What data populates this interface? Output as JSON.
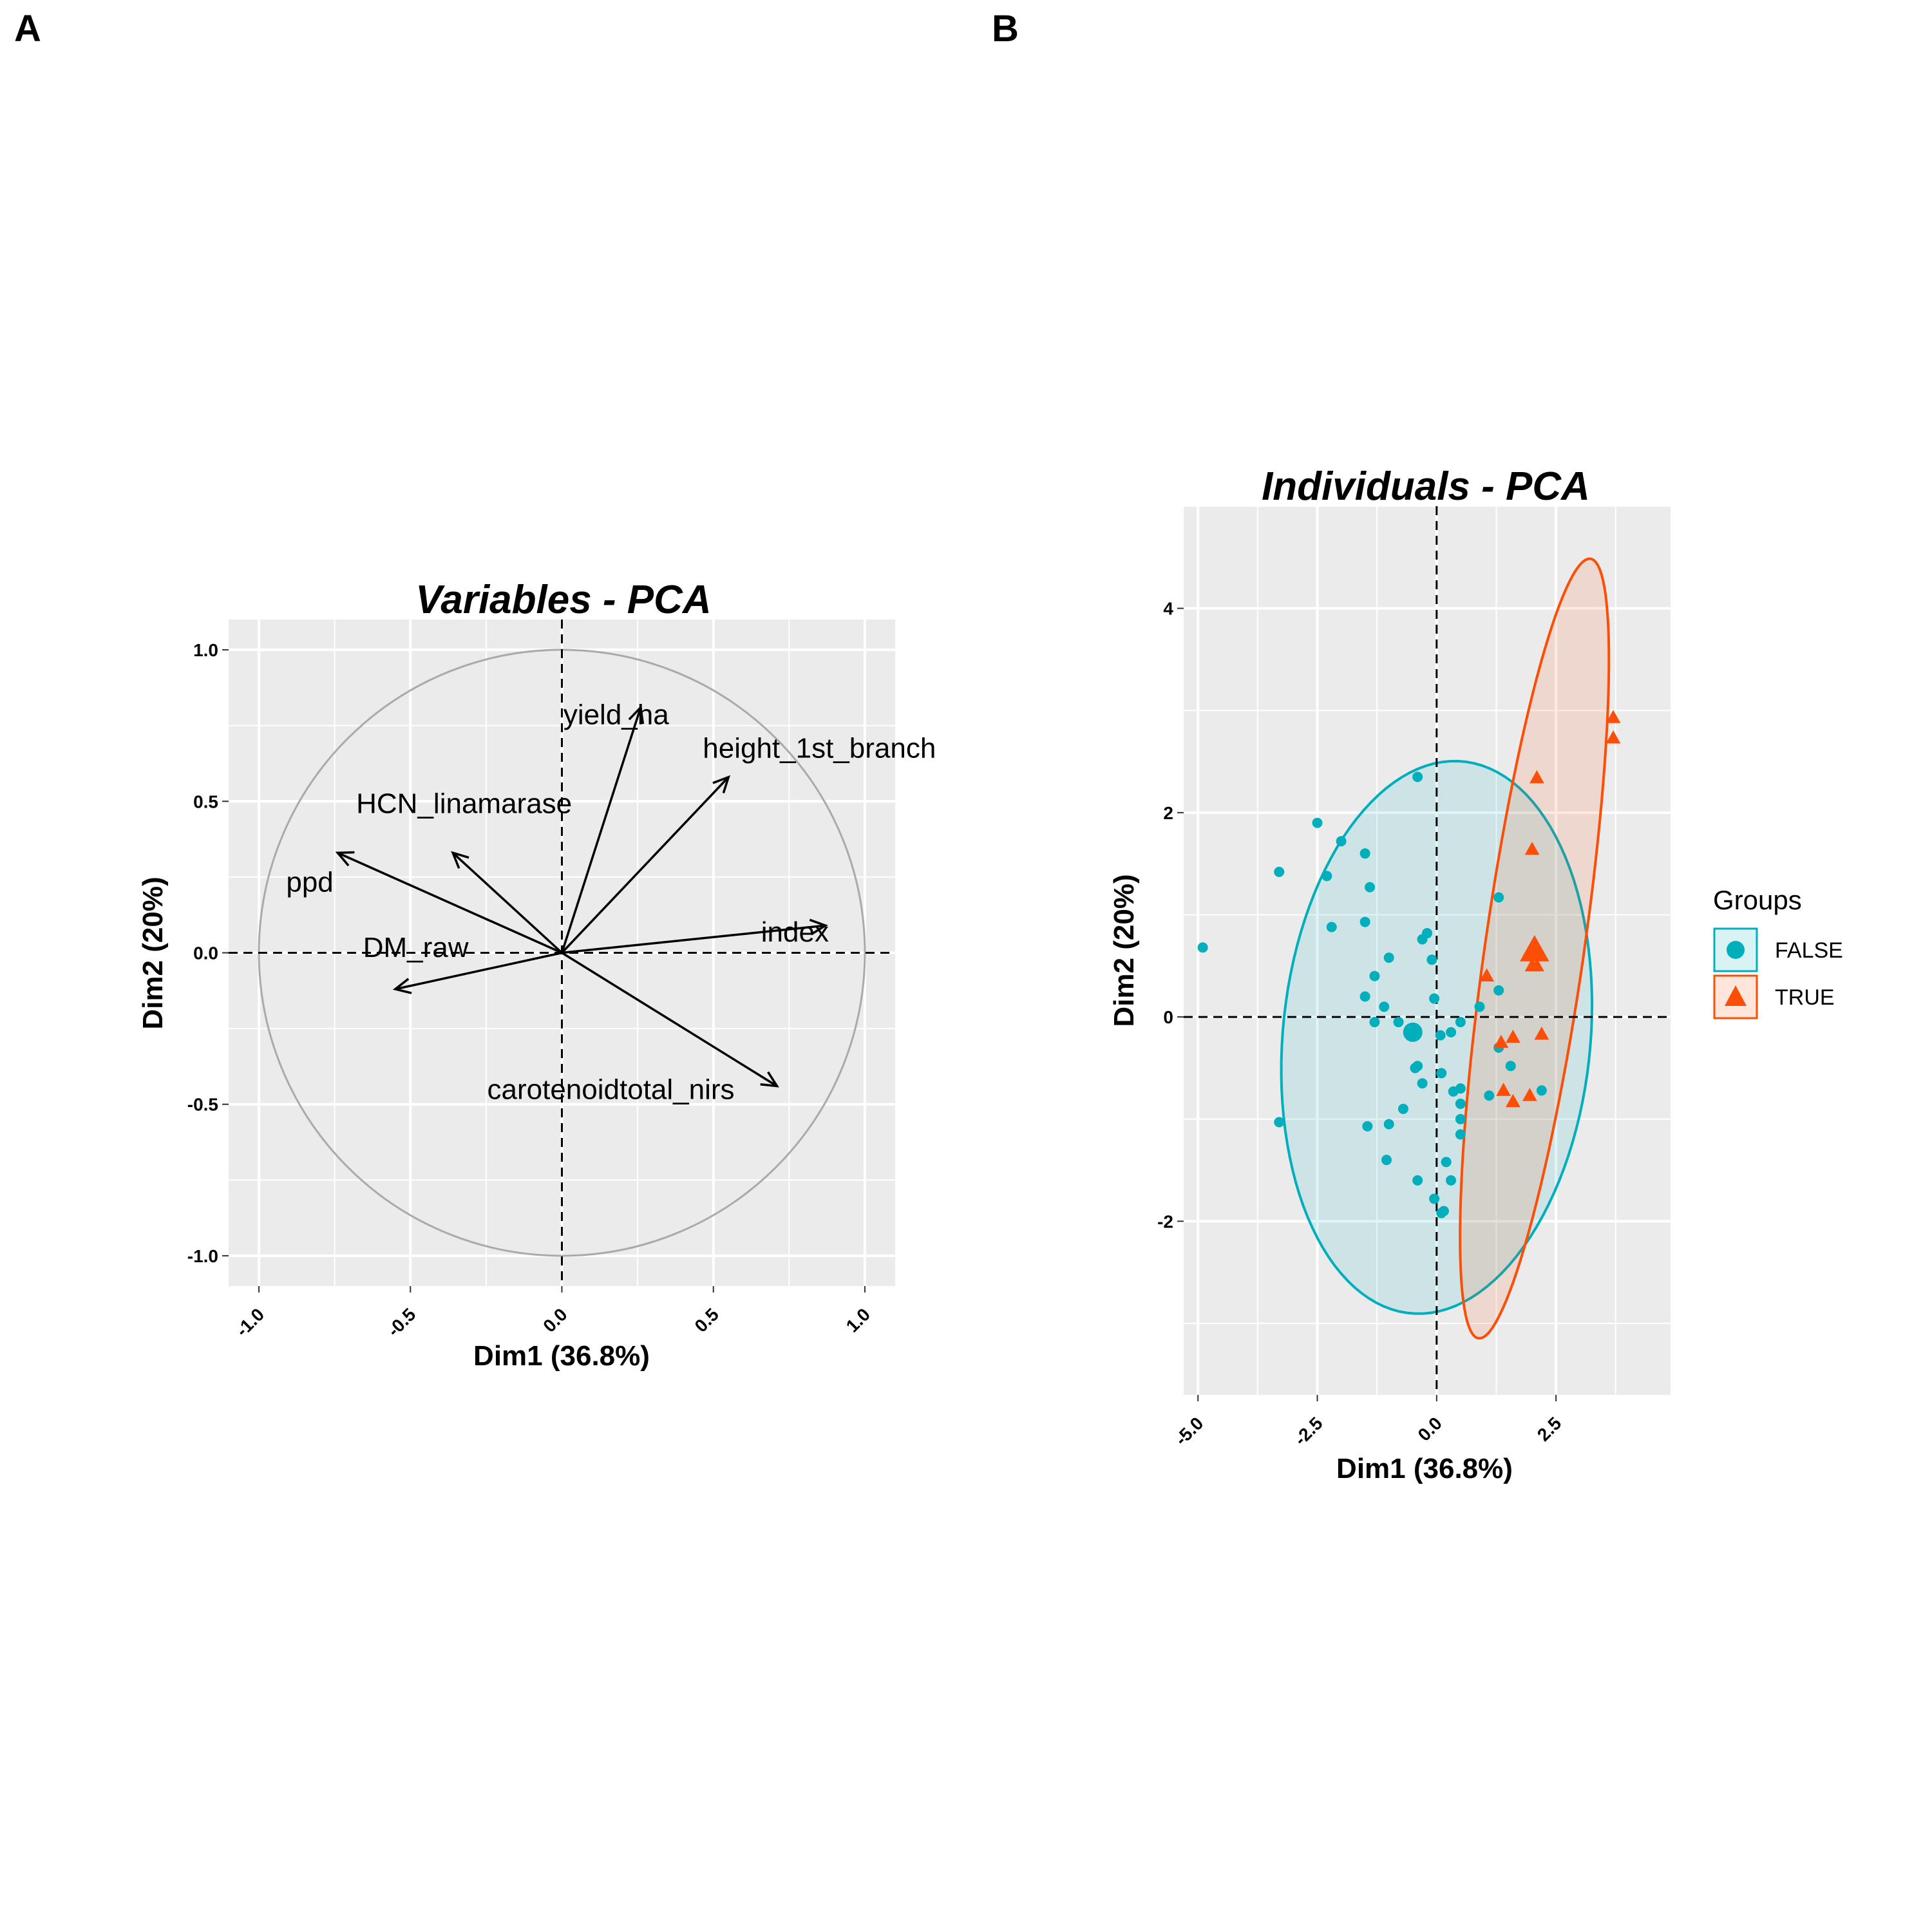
{
  "panel_labels": [
    "A",
    "B"
  ],
  "colors": {
    "false_group": "#00AFBB",
    "true_group": "#FC4E07",
    "panel_bg": "#EBEBEB",
    "grid": "#FFFFFF",
    "circle": "#AAAAAA"
  },
  "chart_data": [
    {
      "type": "scatter",
      "subtype": "pca-variable-correlation-circle",
      "title": "Variables - PCA",
      "xlabel": "Dim1 (36.8%)",
      "ylabel": "Dim2 (20%)",
      "xlim": [
        -1.1,
        1.1
      ],
      "ylim": [
        -1.1,
        1.1
      ],
      "xticks": [
        "-1.0",
        "-0.5",
        "0.0",
        "0.5",
        "1.0"
      ],
      "yticks": [
        "-1.0",
        "-0.5",
        "0.0",
        "0.5",
        "1.0"
      ],
      "grid": true,
      "unit_circle": true,
      "variables": [
        {
          "name": "yield_ha",
          "x": 0.26,
          "y": 0.81
        },
        {
          "name": "height_1st_branch",
          "x": 0.55,
          "y": 0.58
        },
        {
          "name": "HCN_linamarase",
          "x": -0.36,
          "y": 0.33
        },
        {
          "name": "ppd",
          "x": -0.74,
          "y": 0.33
        },
        {
          "name": "DM_raw",
          "x": -0.55,
          "y": -0.12
        },
        {
          "name": "index",
          "x": 0.87,
          "y": 0.09
        },
        {
          "name": "carotenoidtotal_nirs",
          "x": 0.71,
          "y": -0.44
        }
      ]
    },
    {
      "type": "scatter",
      "subtype": "pca-individuals",
      "title": "Individuals - PCA",
      "xlabel": "Dim1 (36.8%)",
      "ylabel": "Dim2 (20%)",
      "xlim": [
        -5.3,
        4.9
      ],
      "ylim": [
        -3.7,
        5.0
      ],
      "xticks": [
        "-5.0",
        "-2.5",
        "0.0",
        "2.5"
      ],
      "yticks": [
        "-2",
        "0",
        "2",
        "4"
      ],
      "grid": true,
      "legend": {
        "title": "Groups",
        "position": "right"
      },
      "series": [
        {
          "name": "FALSE",
          "marker": "circle",
          "centroid": [
            -0.5,
            -0.15
          ],
          "points": [
            [
              -4.9,
              0.68
            ],
            [
              -3.3,
              1.42
            ],
            [
              -2.5,
              1.9
            ],
            [
              -2.3,
              1.38
            ],
            [
              -2.2,
              0.88
            ],
            [
              -2.0,
              1.72
            ],
            [
              -1.5,
              1.6
            ],
            [
              -1.4,
              1.27
            ],
            [
              -1.5,
              0.93
            ],
            [
              -1.3,
              0.4
            ],
            [
              -1.0,
              0.58
            ],
            [
              -1.5,
              0.2
            ],
            [
              -1.1,
              0.1
            ],
            [
              -1.3,
              -0.05
            ],
            [
              -0.8,
              -0.05
            ],
            [
              -0.4,
              2.35
            ],
            [
              -0.3,
              0.76
            ],
            [
              -0.2,
              0.82
            ],
            [
              -0.1,
              0.56
            ],
            [
              -0.05,
              0.18
            ],
            [
              0.3,
              -0.15
            ],
            [
              0.5,
              -0.05
            ],
            [
              -0.45,
              -0.5
            ],
            [
              -0.3,
              -0.65
            ],
            [
              0.1,
              -0.55
            ],
            [
              0.35,
              -0.73
            ],
            [
              0.5,
              -0.7
            ],
            [
              0.5,
              -0.85
            ],
            [
              0.5,
              -1.0
            ],
            [
              0.5,
              -1.15
            ],
            [
              -0.7,
              -0.9
            ],
            [
              -1.0,
              -1.05
            ],
            [
              -1.45,
              -1.07
            ],
            [
              -3.3,
              -1.03
            ],
            [
              -1.05,
              -1.4
            ],
            [
              0.2,
              -1.42
            ],
            [
              0.3,
              -1.6
            ],
            [
              -0.4,
              -1.6
            ],
            [
              -0.05,
              -1.78
            ],
            [
              0.15,
              -1.9
            ],
            [
              0.1,
              -1.92
            ],
            [
              0.9,
              0.1
            ],
            [
              1.3,
              0.26
            ],
            [
              1.3,
              1.17
            ],
            [
              1.3,
              -0.3
            ],
            [
              1.55,
              -0.48
            ],
            [
              1.1,
              -0.77
            ],
            [
              2.2,
              -0.72
            ],
            [
              -0.4,
              -0.48
            ],
            [
              0.08,
              -0.18
            ]
          ],
          "ellipse": {
            "center": [
              0.0,
              -0.2
            ],
            "rx": 3.3,
            "ry": 2.65,
            "rotation_deg": 16
          }
        },
        {
          "name": "TRUE",
          "marker": "triangle",
          "centroid": [
            2.05,
            0.65
          ],
          "points": [
            [
              3.7,
              2.93
            ],
            [
              3.7,
              2.73
            ],
            [
              2.1,
              2.34
            ],
            [
              2.0,
              1.64
            ],
            [
              2.0,
              0.5
            ],
            [
              2.1,
              0.5
            ],
            [
              1.05,
              0.4
            ],
            [
              1.35,
              -0.25
            ],
            [
              1.4,
              -0.72
            ],
            [
              1.6,
              -0.2
            ],
            [
              1.6,
              -0.83
            ],
            [
              1.95,
              -0.77
            ],
            [
              2.2,
              -0.17
            ]
          ],
          "ellipse": {
            "center": [
              2.05,
              0.67
            ],
            "rx": 1.0,
            "ry": 4.0,
            "rotation_deg": -18
          }
        }
      ]
    }
  ]
}
